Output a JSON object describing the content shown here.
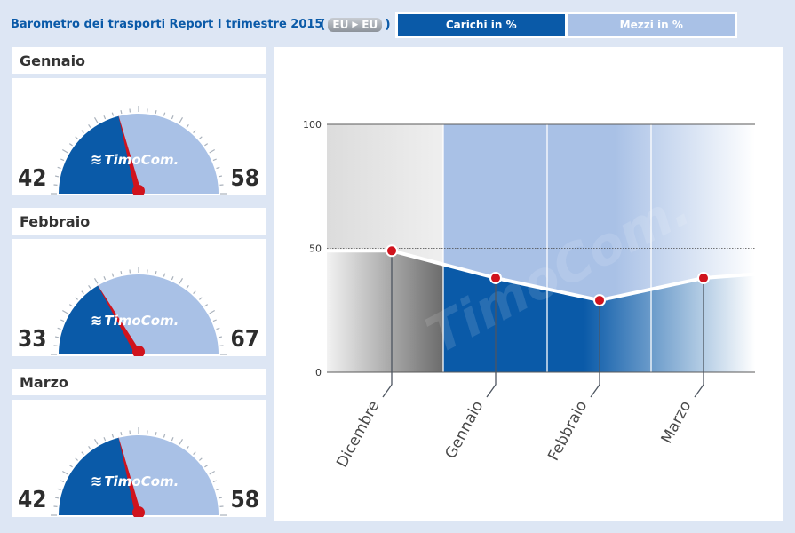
{
  "header": {
    "title": "Barometro dei trasporti Report I trimestre 2015",
    "route_from": "EU",
    "route_to": "EU",
    "route_open": "(",
    "route_close": ")"
  },
  "tabs": [
    {
      "label": "Carichi in %",
      "active": true
    },
    {
      "label": "Mezzi in %",
      "active": false
    }
  ],
  "gauges": [
    {
      "month": "Gennaio",
      "left_value": "42",
      "right_value": "58",
      "logo": "TimoCom."
    },
    {
      "month": "Febbraio",
      "left_value": "33",
      "right_value": "67",
      "logo": "TimoCom."
    },
    {
      "month": "Marzo",
      "left_value": "42",
      "right_value": "58",
      "logo": "TimoCom."
    }
  ],
  "colors": {
    "brand_blue": "#0a5aa8",
    "light_blue": "#a9c1e6",
    "needle_red": "#d0131d"
  },
  "chart_data": {
    "type": "line",
    "categories": [
      "Dicembre",
      "Gennaio",
      "Febbraio",
      "Marzo"
    ],
    "values": [
      49,
      38,
      29,
      38
    ],
    "ylim": [
      0,
      100
    ],
    "yticks": [
      "0",
      "50",
      "100"
    ],
    "watermark": "TimoCom.",
    "title": "",
    "xlabel": "",
    "ylabel": ""
  }
}
